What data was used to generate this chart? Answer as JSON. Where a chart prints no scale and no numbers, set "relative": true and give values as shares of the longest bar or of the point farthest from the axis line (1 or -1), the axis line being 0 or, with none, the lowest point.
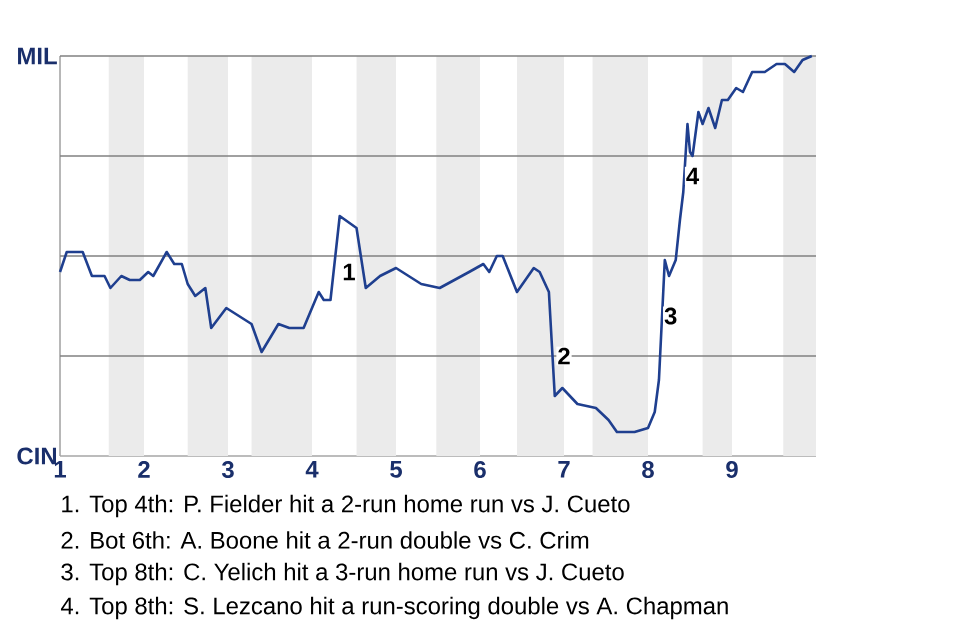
{
  "chart_data": {
    "type": "line",
    "relative": true,
    "x": [
      1.0,
      1.08,
      1.27,
      1.38,
      1.53,
      1.6,
      1.73,
      1.83,
      1.95,
      2.05,
      2.11,
      2.27,
      2.36,
      2.45,
      2.52,
      2.61,
      2.73,
      2.8,
      2.98,
      3.28,
      3.4,
      3.6,
      3.73,
      3.9,
      4.08,
      4.14,
      4.22,
      4.33,
      4.53,
      4.64,
      4.81,
      5.0,
      5.3,
      5.52,
      5.87,
      6.04,
      6.11,
      6.2,
      6.27,
      6.44,
      6.64,
      6.71,
      6.82,
      6.89,
      6.98,
      7.16,
      7.38,
      7.53,
      7.63,
      7.84,
      8.0,
      8.08,
      8.13,
      8.2,
      8.25,
      8.33,
      8.38,
      8.42,
      8.47,
      8.5,
      8.53,
      8.6,
      8.65,
      8.72,
      8.8,
      8.88,
      8.95,
      9.05,
      9.13,
      9.24,
      9.39,
      9.53,
      9.63,
      9.74,
      9.84,
      9.95
    ],
    "series": [
      {
        "color": "#1f3f8f",
        "values": [
          0.46,
          0.51,
          0.51,
          0.45,
          0.45,
          0.42,
          0.45,
          0.44,
          0.44,
          0.46,
          0.45,
          0.51,
          0.48,
          0.48,
          0.43,
          0.4,
          0.42,
          0.32,
          0.37,
          0.33,
          0.26,
          0.33,
          0.32,
          0.32,
          0.41,
          0.39,
          0.39,
          0.6,
          0.57,
          0.42,
          0.45,
          0.47,
          0.43,
          0.42,
          0.46,
          0.48,
          0.46,
          0.5,
          0.5,
          0.41,
          0.47,
          0.46,
          0.41,
          0.15,
          0.17,
          0.13,
          0.12,
          0.09,
          0.06,
          0.06,
          0.07,
          0.11,
          0.19,
          0.49,
          0.45,
          0.49,
          0.59,
          0.66,
          0.83,
          0.76,
          0.75,
          0.86,
          0.83,
          0.87,
          0.82,
          0.89,
          0.89,
          0.92,
          0.91,
          0.96,
          0.96,
          0.98,
          0.98,
          0.96,
          0.99,
          1.0
        ]
      }
    ],
    "xlim": [
      1,
      10
    ],
    "xticks": [
      1,
      2,
      3,
      4,
      5,
      6,
      7,
      8,
      9
    ],
    "line_style": "solid",
    "grid": "y",
    "bands": [
      {
        "axis": "x",
        "from": 1.58,
        "to": 2.0,
        "color": "#ebebeb"
      },
      {
        "axis": "x",
        "from": 2.52,
        "to": 3.0,
        "color": "#ebebeb"
      },
      {
        "axis": "x",
        "from": 3.28,
        "to": 4.0,
        "color": "#ebebeb"
      },
      {
        "axis": "x",
        "from": 4.53,
        "to": 5.0,
        "color": "#ebebeb"
      },
      {
        "axis": "x",
        "from": 5.48,
        "to": 6.0,
        "color": "#ebebeb"
      },
      {
        "axis": "x",
        "from": 6.44,
        "to": 7.0,
        "color": "#ebebeb"
      },
      {
        "axis": "x",
        "from": 7.34,
        "to": 8.0,
        "color": "#ebebeb"
      },
      {
        "axis": "x",
        "from": 8.65,
        "to": 9.0,
        "color": "#ebebeb"
      },
      {
        "axis": "x",
        "from": 9.61,
        "to": 10,
        "color": "#ebebeb"
      }
    ],
    "annotations": [
      "MIL",
      "CIN",
      {
        "text": "1",
        "x": 4.44,
        "y": 0.46
      },
      {
        "text": "2",
        "x": 7.0,
        "y": 0.25
      },
      {
        "text": "3",
        "x": 8.27,
        "y": 0.35
      },
      {
        "text": "4",
        "x": 8.53,
        "y": 0.7
      },
      "1. Top 4th: P. Fielder hit a 2-run home run vs J. Cueto",
      "2. Bot 6th: A. Boone hit a 2-run double vs C. Crim",
      "3. Top 8th: C. Yelich hit a 3-run home run vs J. Cueto",
      "4. Top 8th: S. Lezcano hit a run-scoring double vs A. Chapman"
    ]
  }
}
